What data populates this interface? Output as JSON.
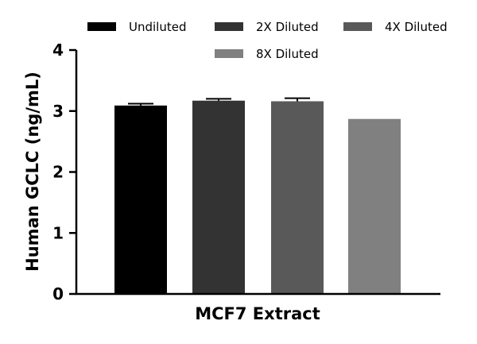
{
  "chart_data": {
    "type": "bar",
    "title": "",
    "xlabel": "MCF7 Extract",
    "ylabel": "Human GCLC (ng/mL)",
    "ylim": [
      0,
      4
    ],
    "yticks": [
      0,
      1,
      2,
      3,
      4
    ],
    "categories": [
      "MCF7 Extract"
    ],
    "series": [
      {
        "name": "Undiluted",
        "values": [
          3.09
        ],
        "error": [
          0.03
        ],
        "color": "#000000"
      },
      {
        "name": "2X Diluted",
        "values": [
          3.17
        ],
        "error": [
          0.03
        ],
        "color": "#333333"
      },
      {
        "name": "4X Diluted",
        "values": [
          3.16
        ],
        "error": [
          0.05
        ],
        "color": "#595959"
      },
      {
        "name": "8X Diluted",
        "values": [
          2.87
        ],
        "error": [
          0.0
        ],
        "color": "#808080"
      }
    ],
    "legend_position": "top"
  }
}
